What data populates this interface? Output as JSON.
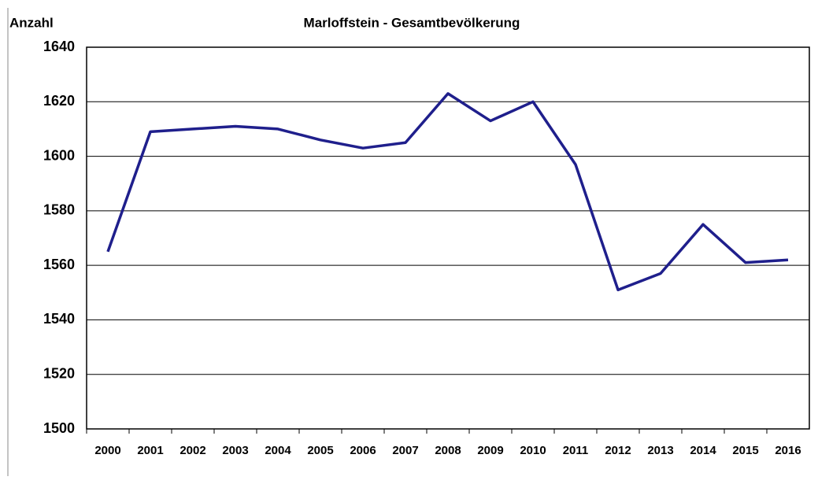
{
  "chart_data": {
    "type": "line",
    "title": "Marloffstein -  Gesamtbevölkerung",
    "y_label": "Anzahl",
    "categories": [
      "2000",
      "2001",
      "2002",
      "2003",
      "2004",
      "2005",
      "2006",
      "2007",
      "2008",
      "2009",
      "2010",
      "2011",
      "2012",
      "2013",
      "2014",
      "2015",
      "2016"
    ],
    "series": [
      {
        "name": "Gesamtbevölkerung",
        "color": "#1f1f8c",
        "values": [
          1565,
          1609,
          1610,
          1611,
          1610,
          1606,
          1603,
          1605,
          1623,
          1613,
          1620,
          1597,
          1551,
          1557,
          1575,
          1561,
          1562
        ]
      }
    ],
    "ylim": [
      1500,
      1640
    ],
    "yticks": [
      1500,
      1520,
      1540,
      1560,
      1580,
      1600,
      1620,
      1640
    ],
    "grid": true
  }
}
